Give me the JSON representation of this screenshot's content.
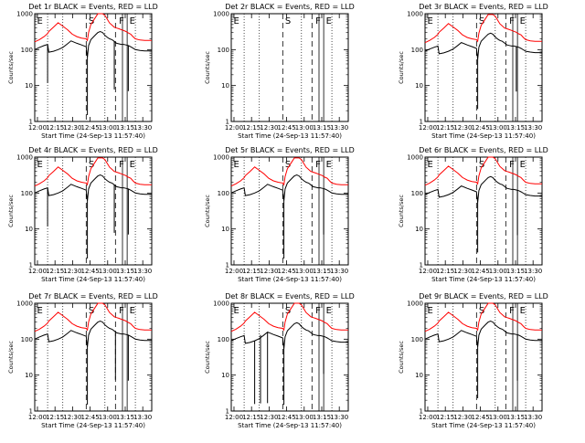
{
  "page": {
    "background": "#ffffff"
  },
  "colors": {
    "events": "#000000",
    "lld": "#ff0000"
  },
  "axes": {
    "ylabel": "Counts/sec",
    "xlabel": "Start Time (24-Sep-13 11:57:40)",
    "xticks": [
      "12:00",
      "12:15",
      "12:30",
      "12:45",
      "13:00",
      "13:15",
      "13:30"
    ],
    "yticks": [
      "1",
      "10",
      "100",
      "1000"
    ],
    "xlim_minutes": [
      0,
      100
    ],
    "ylim": [
      1,
      1000
    ],
    "yscale": "log"
  },
  "chart_data": [
    {
      "type": "line",
      "title": "Det 1r BLACK = Events, RED = LLD",
      "marker_labels": [
        "E",
        "S",
        "F",
        "E"
      ],
      "has_events": true,
      "has_lld": true,
      "event_offset": 1.0,
      "lld_offset": 1.0,
      "dips": [
        [
          11,
          0.5
        ],
        [
          45,
          0.9
        ],
        [
          68,
          0.6
        ],
        [
          80,
          0.6
        ]
      ]
    },
    {
      "type": "line",
      "title": "Det 2r BLACK = Events, RED = LLD",
      "marker_labels": [
        "E",
        "S",
        "F",
        "E"
      ],
      "has_events": false,
      "has_lld": false,
      "event_offset": 1.0,
      "lld_offset": 1.0,
      "dips": []
    },
    {
      "type": "line",
      "title": "Det 3r BLACK = Events, RED = LLD",
      "marker_labels": [
        "E",
        "S",
        "F",
        "E"
      ],
      "has_events": true,
      "has_lld": true,
      "event_offset": 0.9,
      "lld_offset": 0.95,
      "dips": [
        [
          45,
          0.8
        ],
        [
          78,
          0.6
        ]
      ]
    },
    {
      "type": "line",
      "title": "Det 4r BLACK = Events, RED = LLD",
      "marker_labels": [
        "E",
        "S",
        "F",
        "E"
      ],
      "has_events": true,
      "has_lld": true,
      "event_offset": 1.0,
      "lld_offset": 0.95,
      "dips": [
        [
          11,
          0.5
        ],
        [
          45,
          0.9
        ],
        [
          68,
          0.6
        ],
        [
          80,
          0.6
        ]
      ]
    },
    {
      "type": "line",
      "title": "Det 5r BLACK = Events, RED = LLD",
      "marker_labels": [
        "E",
        "S",
        "F",
        "E"
      ],
      "has_events": true,
      "has_lld": true,
      "event_offset": 1.0,
      "lld_offset": 0.95,
      "dips": [
        [
          45,
          0.9
        ],
        [
          79,
          0.6
        ]
      ]
    },
    {
      "type": "line",
      "title": "Det 6r BLACK = Events, RED = LLD",
      "marker_labels": [
        "E",
        "S",
        "F",
        "E"
      ],
      "has_events": true,
      "has_lld": true,
      "event_offset": 0.9,
      "lld_offset": 1.0,
      "dips": [
        [
          45,
          0.8
        ],
        [
          79,
          0.6
        ]
      ]
    },
    {
      "type": "line",
      "title": "Det 7r BLACK = Events, RED = LLD",
      "marker_labels": [
        "E",
        "S",
        "F",
        "E"
      ],
      "has_events": true,
      "has_lld": true,
      "event_offset": 1.0,
      "lld_offset": 1.0,
      "dips": [
        [
          45,
          0.9
        ],
        [
          69,
          0.6
        ],
        [
          80,
          0.6
        ]
      ]
    },
    {
      "type": "line",
      "title": "Det 8r BLACK = Events, RED = LLD",
      "marker_labels": [
        "E",
        "S",
        "F",
        "E"
      ],
      "has_events": true,
      "has_lld": true,
      "event_offset": 0.9,
      "lld_offset": 1.0,
      "dips": [
        [
          20,
          0.9
        ],
        [
          25,
          0.9
        ],
        [
          31,
          0.9
        ],
        [
          45,
          0.9
        ],
        [
          79,
          0.5
        ]
      ]
    },
    {
      "type": "line",
      "title": "Det 9r BLACK = Events, RED = LLD",
      "marker_labels": [
        "E",
        "S",
        "F",
        "E"
      ],
      "has_events": true,
      "has_lld": true,
      "event_offset": 1.0,
      "lld_offset": 1.0,
      "dips": [
        [
          45,
          0.8
        ],
        [
          79,
          0.6
        ]
      ]
    }
  ],
  "base_profile": {
    "minutes": [
      0,
      4,
      8,
      11,
      12,
      16,
      20,
      24,
      28,
      31,
      32,
      36,
      40,
      44,
      45,
      46,
      48,
      52,
      54,
      56,
      58,
      60,
      62,
      64,
      66,
      68,
      70,
      72,
      74,
      76,
      78,
      80,
      82,
      84,
      86,
      90,
      94,
      98,
      100
    ],
    "events": [
      100,
      115,
      130,
      140,
      85,
      90,
      100,
      115,
      145,
      175,
      170,
      150,
      135,
      120,
      60,
      130,
      190,
      260,
      300,
      320,
      300,
      250,
      220,
      200,
      190,
      170,
      150,
      145,
      140,
      140,
      135,
      130,
      120,
      110,
      100,
      95,
      92,
      92,
      92
    ],
    "lld": [
      165,
      190,
      230,
      280,
      320,
      420,
      560,
      450,
      360,
      290,
      270,
      230,
      210,
      200,
      180,
      300,
      500,
      800,
      1000,
      1000,
      1000,
      900,
      700,
      550,
      480,
      420,
      400,
      380,
      360,
      340,
      320,
      290,
      270,
      230,
      200,
      185,
      180,
      180,
      180
    ]
  },
  "reference_lines": {
    "dotted_minutes": [
      11,
      24,
      60,
      86
    ],
    "dashed_minutes": [
      44,
      69
    ],
    "solid_minutes": [
      75,
      79
    ]
  }
}
